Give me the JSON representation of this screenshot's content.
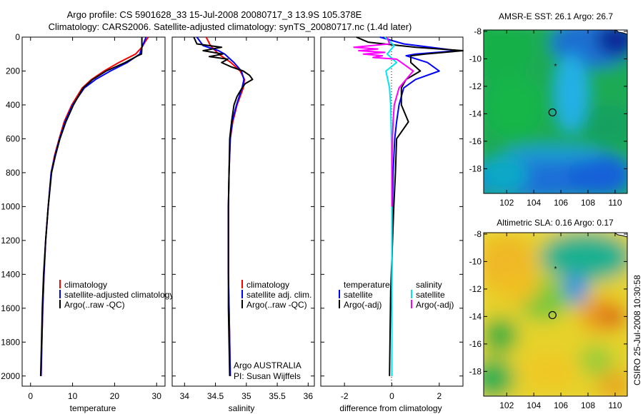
{
  "header": {
    "line1": "Argo profile: CS 5901628_33 15-Jul-2008 20080717_3 13.9S 105.378E",
    "line2": "Climatology: CARS2006. Satellite-adjusted climatology: synTS_20080717.nc (1.4d later)"
  },
  "credit": "CSIRO 25-Jul-2008 10:30:58",
  "colors": {
    "red": "#ff0000",
    "blue": "#0000ff",
    "black": "#000000",
    "cyan": "#00e5ee",
    "magenta": "#ff00ff"
  },
  "chart_data": [
    {
      "type": "line",
      "xlabel": "temperature",
      "ylabel": "",
      "xlim": [
        -2,
        32
      ],
      "ylim": [
        2060,
        0
      ],
      "xticks": [
        0,
        10,
        20,
        30
      ],
      "yticks": [
        0,
        200,
        400,
        600,
        800,
        1000,
        1200,
        1400,
        1600,
        1800,
        2000
      ],
      "legend": {
        "placement": "lower-right",
        "entries": [
          "climatology",
          "satellite-adjusted climatology",
          "Argo(..raw -QC)"
        ]
      },
      "series": [
        {
          "name": "climatology",
          "color": "red",
          "depth": [
            0,
            30,
            60,
            100,
            150,
            200,
            250,
            300,
            400,
            500,
            600,
            700,
            800,
            1000,
            1200,
            1400,
            1600,
            1800,
            2000
          ],
          "values": [
            28.0,
            27.2,
            26.5,
            25.0,
            21.0,
            17.5,
            14.5,
            12.3,
            9.8,
            8.0,
            6.8,
            5.7,
            4.9,
            4.2,
            3.6,
            3.2,
            2.9,
            2.7,
            2.5
          ]
        },
        {
          "name": "satellite-adjusted climatology",
          "color": "blue",
          "depth": [
            0,
            30,
            60,
            100,
            150,
            200,
            250,
            300,
            400,
            500,
            600,
            700,
            800,
            1000,
            1200,
            1400,
            1600,
            1800,
            2000
          ],
          "values": [
            27.5,
            27.0,
            26.5,
            26.0,
            23.0,
            19.0,
            15.5,
            12.8,
            10.0,
            8.2,
            6.9,
            5.8,
            4.9,
            4.2,
            3.6,
            3.2,
            2.9,
            2.7,
            2.5
          ]
        },
        {
          "name": "Argo(..raw -QC)",
          "color": "black",
          "depth": [
            0,
            30,
            60,
            100,
            110,
            150,
            200,
            250,
            300,
            400,
            500,
            600,
            700,
            800,
            1000,
            1200,
            1400,
            1600,
            1800,
            2000
          ],
          "values": [
            26.5,
            26.5,
            26.5,
            26.4,
            25.5,
            22.5,
            18.0,
            14.8,
            12.5,
            10.2,
            8.4,
            7.0,
            5.9,
            5.0,
            4.2,
            3.6,
            3.1,
            2.8,
            2.6,
            2.4
          ]
        }
      ]
    },
    {
      "type": "line",
      "xlabel": "salinity",
      "ylabel": "",
      "xlim": [
        33.8,
        36.1
      ],
      "ylim": [
        2060,
        0
      ],
      "xticks": [
        34,
        34.5,
        35,
        35.5,
        36
      ],
      "legend": {
        "placement": "lower-right",
        "entries": [
          "climatology",
          "satellite adj. clim.",
          "Argo(..raw -QC)"
        ]
      },
      "annotation": [
        "Argo AUSTRALIA",
        "PI: Susan Wijffels"
      ],
      "series": [
        {
          "name": "climatology",
          "color": "red",
          "depth": [
            0,
            50,
            100,
            150,
            200,
            250,
            300,
            400,
            500,
            600,
            800,
            1000,
            1200,
            1400,
            1600,
            1800,
            2000
          ],
          "values": [
            34.35,
            34.42,
            34.55,
            34.75,
            34.9,
            34.97,
            34.95,
            34.85,
            34.78,
            34.74,
            34.72,
            34.71,
            34.71,
            34.71,
            34.72,
            34.73,
            34.74
          ]
        },
        {
          "name": "satellite adj. clim.",
          "color": "blue",
          "depth": [
            0,
            50,
            80,
            100,
            150,
            200,
            250,
            300,
            400,
            500,
            600,
            800,
            1000,
            1200,
            1400,
            1600,
            1800,
            2000
          ],
          "values": [
            34.2,
            34.3,
            34.55,
            34.65,
            34.8,
            34.92,
            34.96,
            34.93,
            34.84,
            34.77,
            34.74,
            34.72,
            34.71,
            34.71,
            34.71,
            34.72,
            34.73,
            34.74
          ]
        },
        {
          "name": "Argo(..raw -QC)",
          "color": "black",
          "depth": [
            0,
            40,
            60,
            80,
            100,
            115,
            130,
            150,
            175,
            200,
            225,
            250,
            275,
            300,
            350,
            400,
            500,
            600,
            800,
            1000,
            1200,
            1400,
            1600,
            1800,
            2000
          ],
          "values": [
            34.15,
            34.2,
            34.6,
            34.3,
            34.62,
            34.4,
            34.7,
            34.6,
            34.75,
            34.95,
            35.05,
            35.1,
            34.98,
            34.93,
            34.85,
            34.8,
            34.76,
            34.73,
            34.72,
            34.71,
            34.71,
            34.71,
            34.71,
            34.72,
            34.73
          ]
        }
      ]
    },
    {
      "type": "line",
      "xlabel": "difference from climatology",
      "ylabel": "",
      "xlim": [
        -3,
        3
      ],
      "ylim": [
        2060,
        0
      ],
      "xticks": [
        -2,
        0,
        2
      ],
      "legend": {
        "placement": "lower-center",
        "columns": [
          {
            "heading": "temperature",
            "entries": [
              {
                "name": "satellite",
                "color": "blue"
              },
              {
                "name": "Argo(-adj)",
                "color": "black"
              }
            ]
          },
          {
            "heading": "salinity",
            "entries": [
              {
                "name": "satellite",
                "color": "cyan"
              },
              {
                "name": "Argo(-adj)",
                "color": "magenta"
              }
            ]
          }
        ]
      },
      "series": [
        {
          "name": "temperature satellite",
          "color": "blue",
          "depth": [
            0,
            40,
            80,
            100,
            110,
            150,
            200,
            250,
            300,
            400,
            500,
            600,
            800,
            1000,
            1500,
            2000
          ],
          "values": [
            -0.5,
            0.5,
            2.8,
            1.0,
            0.6,
            1.5,
            2.0,
            1.0,
            0.5,
            0.3,
            0.2,
            0.12,
            0.05,
            0.02,
            0.0,
            0.0
          ]
        },
        {
          "name": "temperature Argo(-adj)",
          "color": "black",
          "depth": [
            0,
            30,
            60,
            80,
            100,
            110,
            150,
            200,
            250,
            300,
            400,
            500,
            600,
            800,
            1000,
            1500,
            2000
          ],
          "values": [
            -1.5,
            -1.0,
            1.0,
            3.0,
            1.4,
            0.8,
            0.8,
            1.2,
            0.6,
            0.4,
            0.4,
            0.7,
            0.2,
            0.15,
            0.08,
            -0.05,
            -0.1
          ]
        },
        {
          "name": "salinity satellite",
          "color": "cyan",
          "depth": [
            0,
            50,
            100,
            150,
            200,
            300,
            400,
            600,
            800,
            1000,
            1500,
            2000
          ],
          "values": [
            -0.3,
            0.1,
            -0.2,
            0.2,
            -0.25,
            -0.1,
            -0.05,
            -0.02,
            0.0,
            0.0,
            0.0,
            0.0
          ]
        },
        {
          "name": "salinity Argo(-adj)",
          "color": "magenta",
          "depth": [
            0,
            40,
            60,
            70,
            80,
            90,
            100,
            110,
            120,
            130,
            150,
            200,
            250,
            300,
            400,
            500,
            600,
            800,
            1000
          ],
          "values": [
            -0.2,
            -0.1,
            -1.6,
            -0.6,
            -1.4,
            -0.3,
            -1.2,
            -0.4,
            -0.8,
            0.2,
            0.4,
            0.9,
            0.6,
            0.3,
            0.1,
            0.05,
            0.02,
            0.0,
            0.0
          ]
        }
      ]
    },
    {
      "type": "heatmap",
      "title": "AMSR-E SST: 26.1 Argo: 26.7",
      "xlim": [
        100.3,
        110.9
      ],
      "ylim": [
        -19.8,
        -7.9
      ],
      "xticks": [
        102,
        104,
        106,
        108,
        110
      ],
      "yticks": [
        -8,
        -10,
        -12,
        -14,
        -16,
        -18
      ],
      "argo_position": [
        105.378,
        -13.9
      ],
      "marker_star": [
        105.6,
        -10.5
      ]
    },
    {
      "type": "heatmap",
      "title": "Altimetric SLA: 0.16 Argo: 0.17",
      "xlim": [
        100.3,
        110.9
      ],
      "ylim": [
        -19.8,
        -7.9
      ],
      "xticks": [
        102,
        104,
        106,
        108,
        110
      ],
      "yticks": [
        -8,
        -10,
        -12,
        -14,
        -16,
        -18
      ],
      "argo_position": [
        105.378,
        -13.9
      ],
      "marker_star": [
        105.6,
        -10.5
      ]
    }
  ]
}
